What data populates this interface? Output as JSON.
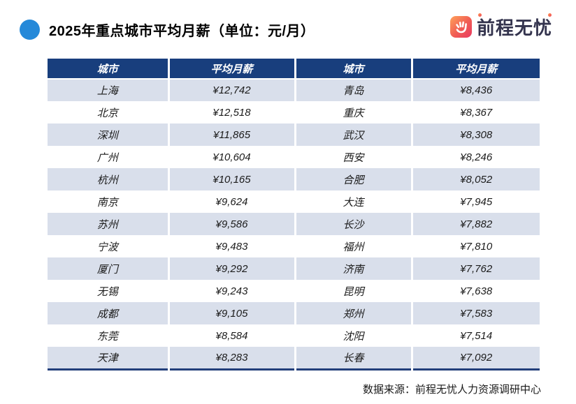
{
  "title": {
    "text": "2025年重点城市平均月薪（单位：元/月）"
  },
  "logo": {
    "brand": "前程无忧",
    "icon": "hand-smile-icon"
  },
  "table": {
    "headers": [
      "城市",
      "平均月薪",
      "城市",
      "平均月薪"
    ],
    "rows": [
      [
        "上海",
        "¥12,742",
        "青岛",
        "¥8,436"
      ],
      [
        "北京",
        "¥12,518",
        "重庆",
        "¥8,367"
      ],
      [
        "深圳",
        "¥11,865",
        "武汉",
        "¥8,308"
      ],
      [
        "广州",
        "¥10,604",
        "西安",
        "¥8,246"
      ],
      [
        "杭州",
        "¥10,165",
        "合肥",
        "¥8,052"
      ],
      [
        "南京",
        "¥9,624",
        "大连",
        "¥7,945"
      ],
      [
        "苏州",
        "¥9,586",
        "长沙",
        "¥7,882"
      ],
      [
        "宁波",
        "¥9,483",
        "福州",
        "¥7,810"
      ],
      [
        "厦门",
        "¥9,292",
        "济南",
        "¥7,762"
      ],
      [
        "无锡",
        "¥9,243",
        "昆明",
        "¥7,638"
      ],
      [
        "成都",
        "¥9,105",
        "郑州",
        "¥7,583"
      ],
      [
        "东莞",
        "¥8,584",
        "沈阳",
        "¥7,514"
      ],
      [
        "天津",
        "¥8,283",
        "长春",
        "¥7,092"
      ]
    ]
  },
  "footer": {
    "text": "数据来源：前程无忧人力资源调研中心"
  },
  "colors": {
    "header_bg": "#183e7d",
    "row_alt_bg": "#d9dfeb",
    "title_dot": "#2589d9",
    "logo_text": "#34344e",
    "logo_gradient_start": "#ffa25b",
    "logo_gradient_end": "#e93a62",
    "table_bottom_border": "#223f7a"
  },
  "chart_data": {
    "type": "table",
    "title": "2025年重点城市平均月薪（单位：元/月）",
    "columns": [
      "城市",
      "平均月薪(元/月)"
    ],
    "series": [
      {
        "name": "平均月薪",
        "points": [
          {
            "city": "上海",
            "salary": 12742
          },
          {
            "city": "北京",
            "salary": 12518
          },
          {
            "city": "深圳",
            "salary": 11865
          },
          {
            "city": "广州",
            "salary": 10604
          },
          {
            "city": "杭州",
            "salary": 10165
          },
          {
            "city": "南京",
            "salary": 9624
          },
          {
            "city": "苏州",
            "salary": 9586
          },
          {
            "city": "宁波",
            "salary": 9483
          },
          {
            "city": "厦门",
            "salary": 9292
          },
          {
            "city": "无锡",
            "salary": 9243
          },
          {
            "city": "成都",
            "salary": 9105
          },
          {
            "city": "东莞",
            "salary": 8584
          },
          {
            "city": "天津",
            "salary": 8283
          },
          {
            "city": "青岛",
            "salary": 8436
          },
          {
            "city": "重庆",
            "salary": 8367
          },
          {
            "city": "武汉",
            "salary": 8308
          },
          {
            "city": "西安",
            "salary": 8246
          },
          {
            "city": "合肥",
            "salary": 8052
          },
          {
            "city": "大连",
            "salary": 7945
          },
          {
            "city": "长沙",
            "salary": 7882
          },
          {
            "city": "福州",
            "salary": 7810
          },
          {
            "city": "济南",
            "salary": 7762
          },
          {
            "city": "昆明",
            "salary": 7638
          },
          {
            "city": "郑州",
            "salary": 7583
          },
          {
            "city": "沈阳",
            "salary": 7514
          },
          {
            "city": "长春",
            "salary": 7092
          }
        ]
      }
    ],
    "source": "前程无忧人力资源调研中心",
    "layout": {
      "grid": "alternating-row-shading",
      "legend": "none"
    }
  }
}
